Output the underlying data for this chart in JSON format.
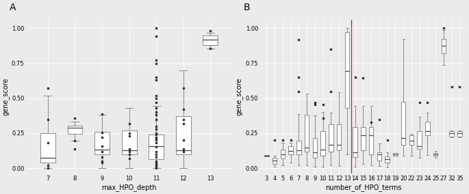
{
  "panel_A": {
    "label": "A",
    "xlabel": "max_HPO_depth",
    "ylabel": "gene_score",
    "categories": [
      7,
      8,
      9,
      10,
      11,
      12,
      13
    ],
    "boxes": {
      "7": {
        "q1": 0.04,
        "median": 0.075,
        "q3": 0.25,
        "whislo": 0.0,
        "whishi": 0.52,
        "fliers": [
          0.57,
          0.35,
          0.18,
          0.0,
          0.02
        ]
      },
      "8": {
        "q1": 0.245,
        "median": 0.29,
        "q3": 0.305,
        "whislo": 0.195,
        "whishi": 0.335,
        "fliers": [
          0.355,
          0.195,
          0.14
        ]
      },
      "9": {
        "q1": 0.1,
        "median": 0.135,
        "q3": 0.26,
        "whislo": 0.0,
        "whishi": 0.38,
        "fliers": [
          0.385,
          0.255,
          0.22,
          0.155,
          0.12,
          0.08,
          0.05,
          0.04
        ]
      },
      "10": {
        "q1": 0.1,
        "median": 0.13,
        "q3": 0.27,
        "whislo": 0.0,
        "whishi": 0.43,
        "fliers": [
          0.32,
          0.25,
          0.23,
          0.14,
          0.12,
          0.1,
          0.07
        ]
      },
      "11": {
        "q1": 0.065,
        "median": 0.155,
        "q3": 0.24,
        "whislo": 0.0,
        "whishi": 0.445,
        "fliers": [
          1.0,
          0.945,
          0.77,
          0.75,
          0.65,
          0.63,
          0.52,
          0.5,
          0.47,
          0.43,
          0.4,
          0.38,
          0.35,
          0.3,
          0.28,
          0.25,
          0.24,
          0.22,
          0.21,
          0.2,
          0.18,
          0.15,
          0.12,
          0.1,
          0.08,
          0.05,
          0.04,
          0.03,
          0.02,
          0.01,
          0.0
        ]
      },
      "12": {
        "q1": 0.1,
        "median": 0.13,
        "q3": 0.37,
        "whislo": 0.0,
        "whishi": 0.7,
        "fliers": [
          0.57,
          0.42,
          0.35,
          0.32,
          0.2,
          0.14,
          0.12
        ]
      },
      "13": {
        "q1": 0.88,
        "median": 0.92,
        "q3": 0.95,
        "whislo": 0.855,
        "whishi": 0.97,
        "fliers": [
          0.98,
          0.855
        ]
      }
    },
    "ylim": [
      -0.04,
      1.06
    ],
    "yticks": [
      0.0,
      0.25,
      0.5,
      0.75,
      1.0
    ]
  },
  "panel_B": {
    "label": "B",
    "xlabel": "number_of_HPO_terms",
    "ylabel": "gene_score",
    "categories": [
      3,
      4,
      5,
      6,
      7,
      8,
      9,
      10,
      11,
      12,
      13,
      14,
      15,
      16,
      17,
      18,
      19,
      20,
      22,
      23,
      24,
      25,
      27,
      32,
      35
    ],
    "boxes": {
      "3": {
        "q1": 0.085,
        "median": 0.09,
        "q3": 0.095,
        "whislo": 0.085,
        "whishi": 0.095,
        "fliers": []
      },
      "4": {
        "q1": 0.03,
        "median": 0.055,
        "q3": 0.075,
        "whislo": 0.01,
        "whishi": 0.09,
        "fliers": [
          0.2
        ]
      },
      "5": {
        "q1": 0.07,
        "median": 0.1,
        "q3": 0.135,
        "whislo": 0.02,
        "whishi": 0.18,
        "fliers": [
          0.2
        ]
      },
      "6": {
        "q1": 0.1,
        "median": 0.125,
        "q3": 0.155,
        "whislo": 0.04,
        "whishi": 0.18,
        "fliers": [
          0.2
        ]
      },
      "7": {
        "q1": 0.1,
        "median": 0.13,
        "q3": 0.195,
        "whislo": 0.02,
        "whishi": 0.385,
        "fliers": [
          0.55,
          0.65,
          0.92
        ]
      },
      "8": {
        "q1": 0.12,
        "median": 0.145,
        "q3": 0.38,
        "whislo": 0.02,
        "whishi": 0.535,
        "fliers": []
      },
      "9": {
        "q1": 0.075,
        "median": 0.115,
        "q3": 0.215,
        "whislo": 0.01,
        "whishi": 0.375,
        "fliers": [
          0.455,
          0.47
        ]
      },
      "10": {
        "q1": 0.09,
        "median": 0.135,
        "q3": 0.265,
        "whislo": 0.01,
        "whishi": 0.4,
        "fliers": [
          0.455,
          0.355
        ]
      },
      "11": {
        "q1": 0.12,
        "median": 0.165,
        "q3": 0.315,
        "whislo": 0.02,
        "whishi": 0.395,
        "fliers": [
          0.55,
          0.85
        ]
      },
      "12": {
        "q1": 0.13,
        "median": 0.165,
        "q3": 0.315,
        "whislo": 0.015,
        "whishi": 0.545,
        "fliers": []
      },
      "13": {
        "q1": 0.43,
        "median": 0.695,
        "q3": 0.975,
        "whislo": 0.1,
        "whishi": 1.0,
        "fliers": []
      },
      "14": {
        "q1": 0.08,
        "median": 0.115,
        "q3": 0.295,
        "whislo": 0.01,
        "whishi": 0.445,
        "fliers": [
          0.65
        ]
      },
      "15": {
        "q1": 0.13,
        "median": 0.235,
        "q3": 0.295,
        "whislo": 0.03,
        "whishi": 0.445,
        "fliers": [
          0.645
        ]
      },
      "16": {
        "q1": 0.1,
        "median": 0.235,
        "q3": 0.295,
        "whislo": 0.02,
        "whishi": 0.445,
        "fliers": [
          0.33
        ]
      },
      "17": {
        "q1": 0.055,
        "median": 0.1,
        "q3": 0.115,
        "whislo": 0.015,
        "whishi": 0.175,
        "fliers": [
          0.35
        ]
      },
      "18": {
        "q1": 0.04,
        "median": 0.065,
        "q3": 0.085,
        "whislo": 0.005,
        "whishi": 0.115,
        "fliers": [
          0.2
        ]
      },
      "19": {
        "q1": 0.09,
        "median": 0.1,
        "q3": 0.11,
        "whislo": 0.09,
        "whishi": 0.11,
        "fliers": []
      },
      "20": {
        "q1": 0.165,
        "median": 0.215,
        "q3": 0.475,
        "whislo": 0.09,
        "whishi": 0.925,
        "fliers": []
      },
      "22": {
        "q1": 0.165,
        "median": 0.195,
        "q3": 0.235,
        "whislo": 0.09,
        "whishi": 0.245,
        "fliers": []
      },
      "23": {
        "q1": 0.14,
        "median": 0.155,
        "q3": 0.265,
        "whislo": 0.075,
        "whishi": 0.365,
        "fliers": [
          0.47
        ]
      },
      "24": {
        "q1": 0.235,
        "median": 0.265,
        "q3": 0.335,
        "whislo": 0.095,
        "whishi": 0.395,
        "fliers": [
          0.47
        ]
      },
      "25": {
        "q1": 0.09,
        "median": 0.1,
        "q3": 0.11,
        "whislo": 0.075,
        "whishi": 0.125,
        "fliers": []
      },
      "27": {
        "q1": 0.82,
        "median": 0.875,
        "q3": 0.925,
        "whislo": 0.74,
        "whishi": 0.985,
        "fliers": [
          1.0
        ]
      },
      "32": {
        "q1": 0.225,
        "median": 0.25,
        "q3": 0.265,
        "whislo": 0.22,
        "whishi": 0.27,
        "fliers": [
          0.58
        ]
      },
      "35": {
        "q1": 0.225,
        "median": 0.25,
        "q3": 0.265,
        "whislo": 0.22,
        "whishi": 0.27,
        "fliers": [
          0.58
        ]
      }
    },
    "vline_color": "#cc2222",
    "ylim": [
      -0.04,
      1.06
    ],
    "yticks": [
      0.0,
      0.25,
      0.5,
      0.75,
      1.0
    ]
  },
  "bg_color": "#ebebeb",
  "box_color": "#ffffff",
  "box_edge_color": "#888888",
  "median_color": "#444444",
  "whisker_color": "#888888",
  "flier_color": "#333333",
  "grid_color": "#ffffff",
  "label_fontsize": 7,
  "tick_fontsize": 6,
  "panel_label_fontsize": 10
}
